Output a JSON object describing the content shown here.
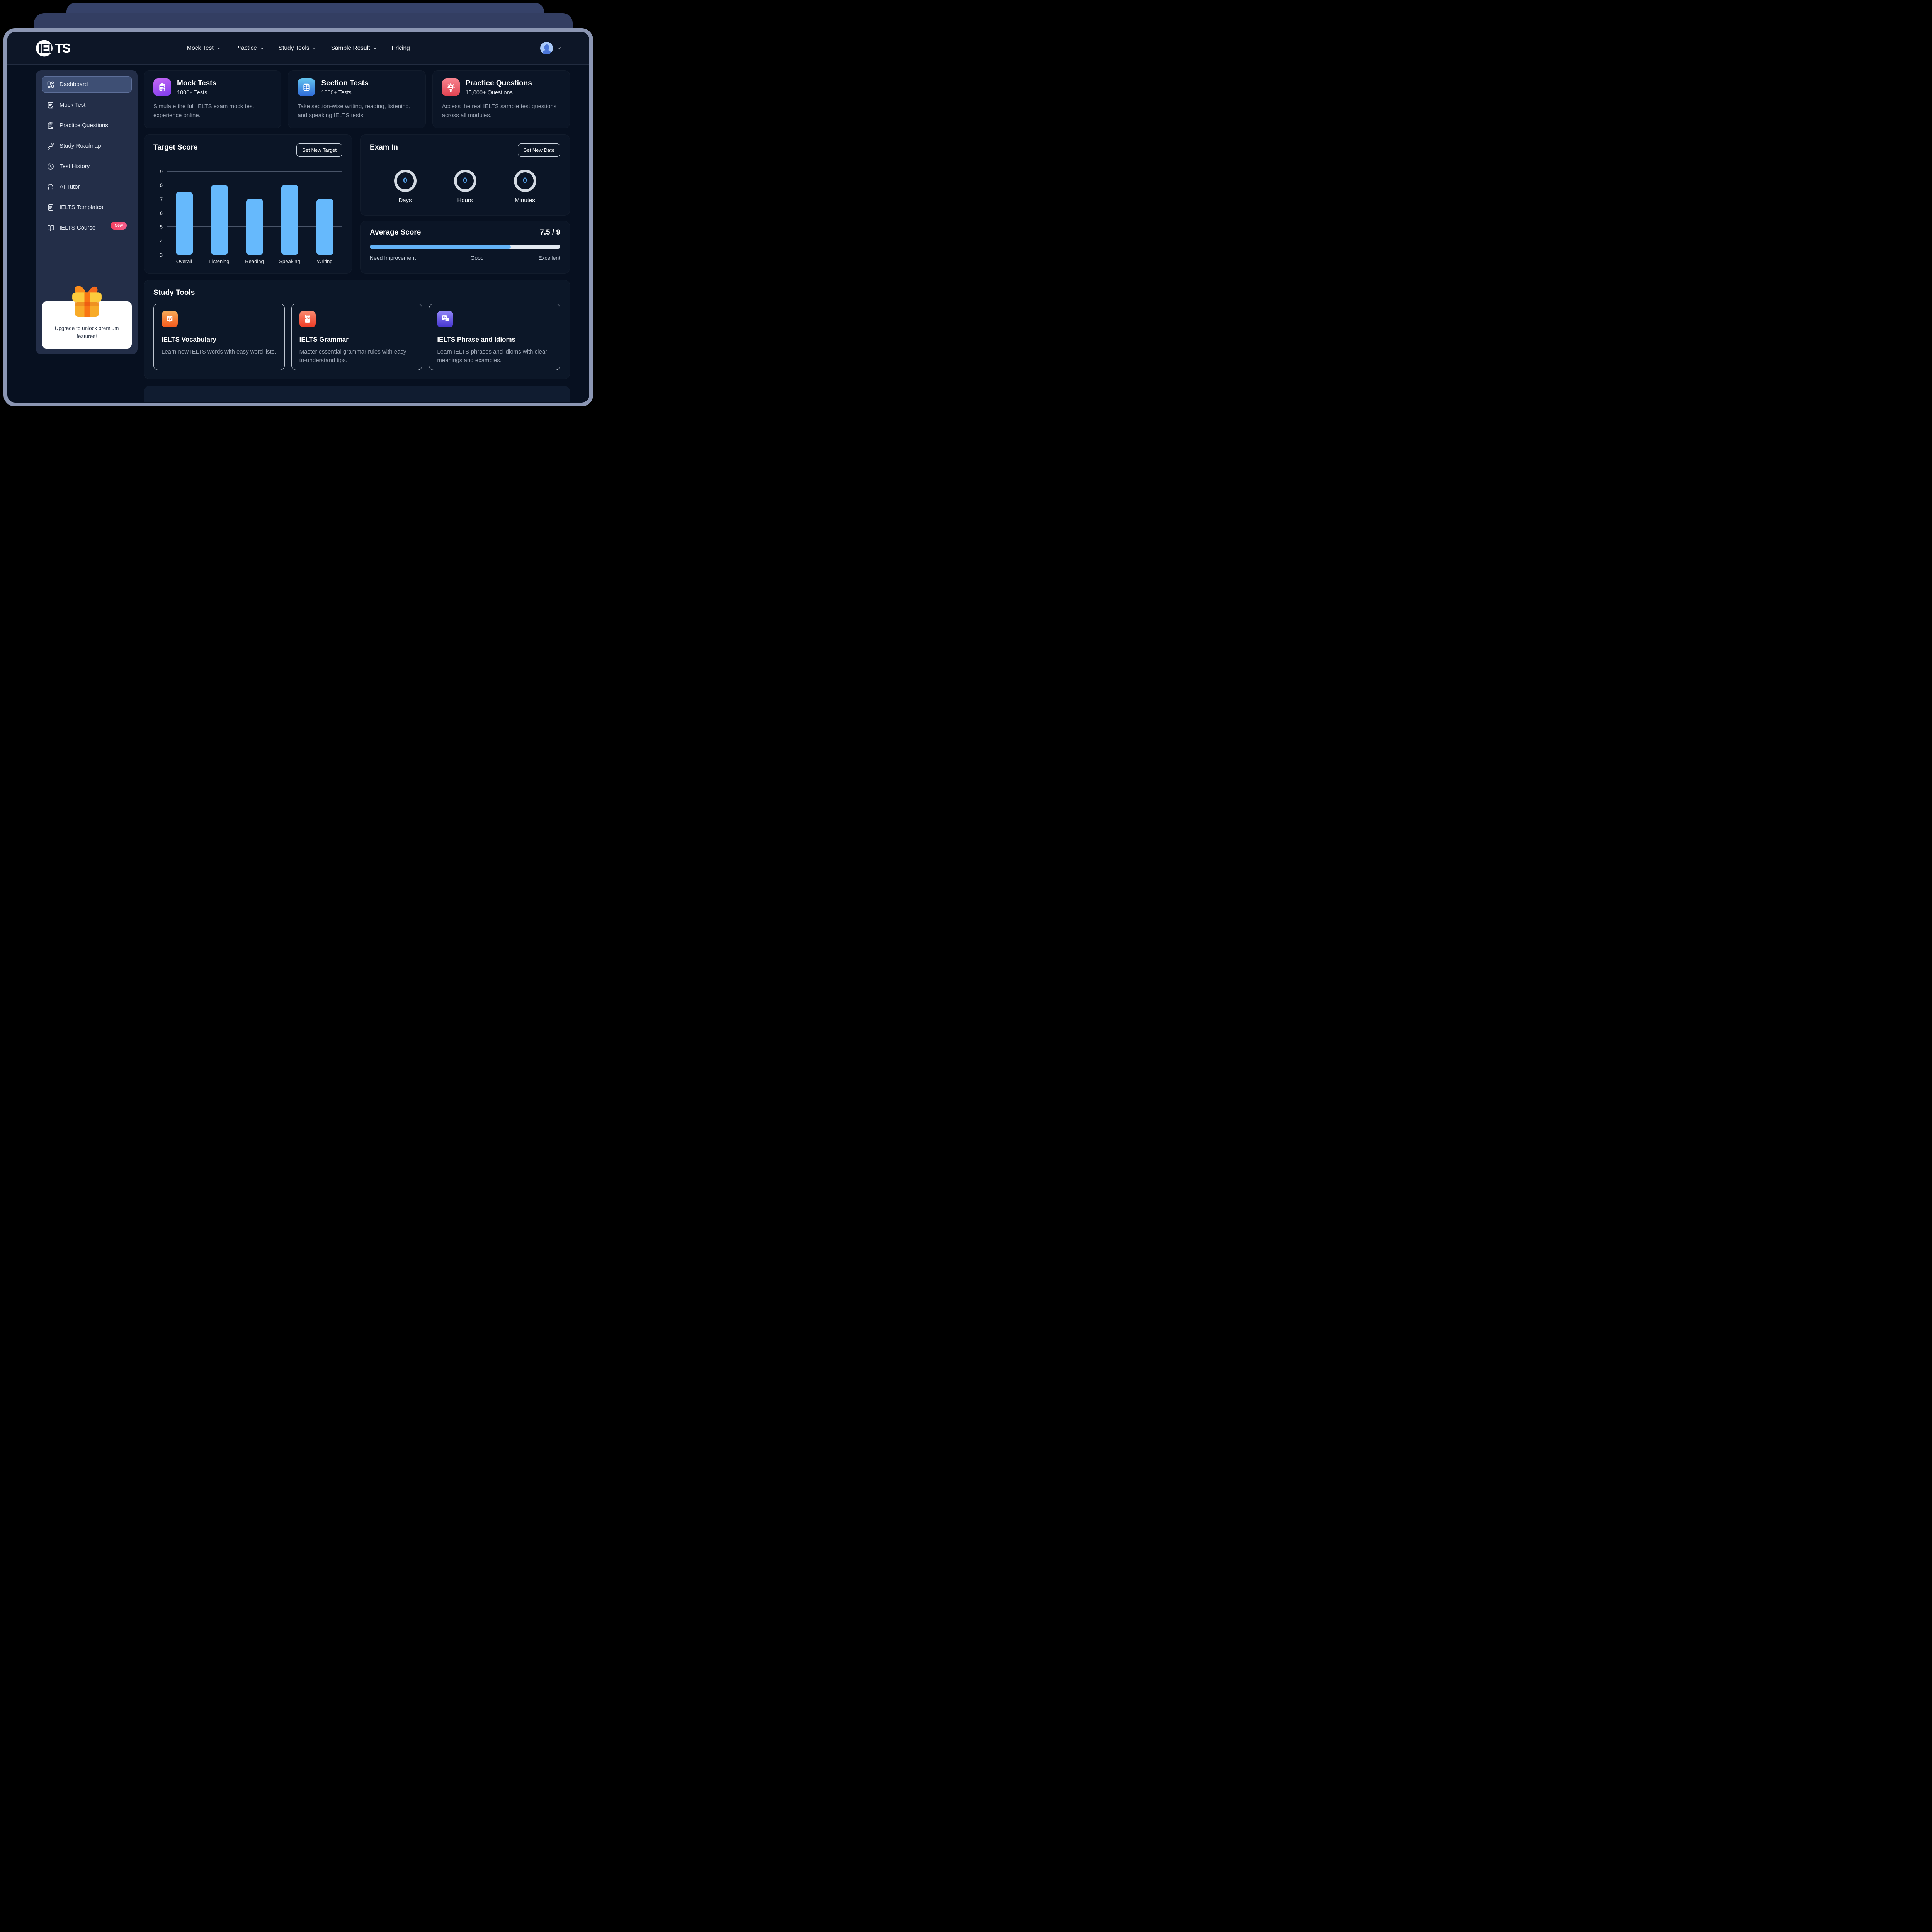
{
  "colors": {
    "accent_blue": "#66b9fc",
    "badge_pink": "#f43f5e",
    "countdown_ring_gray": "#d3dae3",
    "progress_track_gray": "#e2e8f0",
    "window_border": "#8b96b3"
  },
  "header": {
    "logo_part1": "IEL",
    "logo_part2": "TS",
    "nav": [
      {
        "label": "Mock Test",
        "dropdown": true
      },
      {
        "label": "Practice",
        "dropdown": true
      },
      {
        "label": "Study Tools",
        "dropdown": true
      },
      {
        "label": "Sample Result",
        "dropdown": true
      },
      {
        "label": "Pricing",
        "dropdown": false
      }
    ]
  },
  "sidebar": {
    "items": [
      {
        "label": "Dashboard",
        "active": true
      },
      {
        "label": "Mock Test"
      },
      {
        "label": "Practice Questions"
      },
      {
        "label": "Study Roadmap"
      },
      {
        "label": "Test History"
      },
      {
        "label": "AI Tutor"
      },
      {
        "label": "IELTS Templates"
      },
      {
        "label": "IELTS Course",
        "badge": "New"
      }
    ],
    "upgrade_text": "Upgrade to unlock premium features!"
  },
  "stats": [
    {
      "title": "Mock Tests",
      "subtitle": "1000+ Tests",
      "desc": "Simulate the full IELTS exam mock test experience online.",
      "icon": "clipboard-check-icon"
    },
    {
      "title": "Section Tests",
      "subtitle": "1000+ Tests",
      "desc": "Take section-wise writing, reading, listening, and speaking IELTS tests.",
      "icon": "checklist-icon"
    },
    {
      "title": "Practice Questions",
      "subtitle": "15,000+ Questions",
      "desc": "Access the real IELTS sample test questions across all modules.",
      "icon": "gear-person-icon"
    }
  ],
  "target_score": {
    "title": "Target Score",
    "button": "Set New Target"
  },
  "chart_data": {
    "type": "bar",
    "title": "Target Score",
    "categories": [
      "Overall",
      "Listening",
      "Reading",
      "Speaking",
      "Writing"
    ],
    "values": [
      7.5,
      8,
      7,
      8,
      7
    ],
    "ylim": [
      3,
      9
    ],
    "yticks": [
      3,
      4,
      5,
      6,
      7,
      8,
      9
    ],
    "bar_color": "#66b9fc",
    "grid": true,
    "legend": "none",
    "xlabel": "",
    "ylabel": ""
  },
  "exam_in": {
    "title": "Exam In",
    "button": "Set New Date",
    "units": [
      {
        "value": "0",
        "label": "Days"
      },
      {
        "value": "0",
        "label": "Hours"
      },
      {
        "value": "0",
        "label": "Minutes"
      }
    ]
  },
  "average_score": {
    "title": "Average Score",
    "score": "7.5 / 9",
    "percent": 74,
    "scale_labels": [
      "Need Improvement",
      "Good",
      "Excellent"
    ]
  },
  "study_tools": {
    "title": "Study Tools",
    "cards": [
      {
        "title": "IELTS Vocabulary",
        "desc": "Learn new IELTS words with easy word lists.",
        "icon": "translate-book-icon"
      },
      {
        "title": "IELTS Grammar",
        "desc": "Master essential grammar rules with easy-to-understand tips.",
        "icon": "abc-book-icon"
      },
      {
        "title": "IELTS Phrase and Idioms",
        "desc": "Learn IELTS phrases and idioms with clear meanings and examples.",
        "icon": "chat-en-icon"
      }
    ]
  }
}
